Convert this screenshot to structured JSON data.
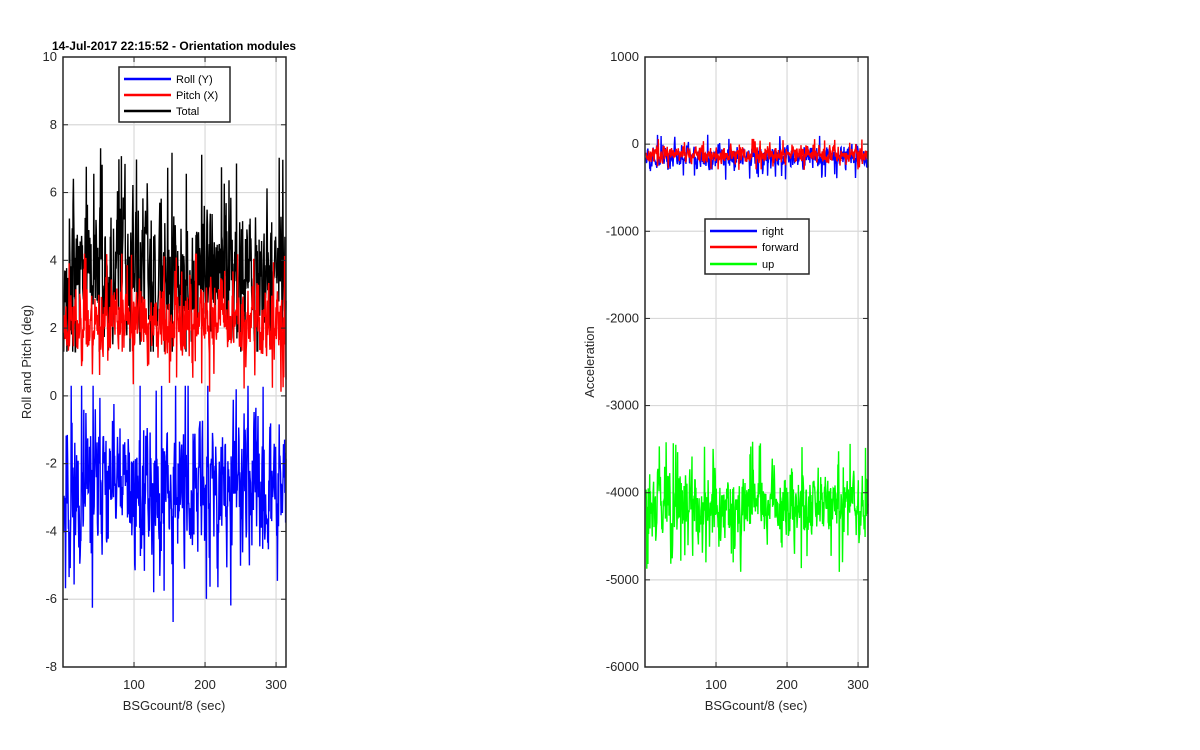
{
  "chart_data": [
    {
      "type": "line",
      "title": "14-Jul-2017 22:15:52 - Orientation modules",
      "xlabel": "BSGcount/8 (sec)",
      "ylabel": "Roll and Pitch (deg)",
      "xlim": [
        0,
        314
      ],
      "ylim": [
        -8,
        10
      ],
      "xticks": [
        100,
        200,
        300
      ],
      "xtick_labels": [
        "100",
        "200",
        "300"
      ],
      "yticks": [
        -8,
        -6,
        -4,
        -2,
        0,
        2,
        4,
        6,
        8,
        10
      ],
      "ytick_labels": [
        "-8",
        "-6",
        "-4",
        "-2",
        "0",
        "2",
        "4",
        "6",
        "8",
        "10"
      ],
      "grid": true,
      "legend_position": "top-center",
      "series": [
        {
          "name": "Roll (Y)",
          "color": "#0000ff",
          "mean": -2.8,
          "amp": 1.5,
          "min": -8,
          "max": 0.3,
          "seed": 11
        },
        {
          "name": "Pitch (X)",
          "color": "#ff0000",
          "mean": 2.2,
          "amp": 0.8,
          "min": -0.1,
          "max": 4.2,
          "seed": 23
        },
        {
          "name": "Total",
          "color": "#000000",
          "mean": 3.7,
          "amp": 1.4,
          "min": 1.3,
          "max": 8.5,
          "seed": 37
        }
      ]
    },
    {
      "type": "line",
      "title": "",
      "xlabel": "BSGcount/8 (sec)",
      "ylabel": "Acceleration",
      "xlim": [
        0,
        314
      ],
      "ylim": [
        -6000,
        1000
      ],
      "xticks": [
        100,
        200,
        300
      ],
      "xtick_labels": [
        "100",
        "200",
        "300"
      ],
      "yticks": [
        -6000,
        -5000,
        -4000,
        -3000,
        -2000,
        -1000,
        0,
        1000
      ],
      "ytick_labels": [
        "-6000",
        "-5000",
        "-4000",
        "-3000",
        "-2000",
        "-1000",
        "0",
        "1000"
      ],
      "grid": true,
      "legend_position": "upper-center",
      "series": [
        {
          "name": "right",
          "color": "#0000ff",
          "mean": -150,
          "amp": 100,
          "min": -500,
          "max": 150,
          "seed": 5
        },
        {
          "name": "forward",
          "color": "#ff0000",
          "mean": -120,
          "amp": 70,
          "min": -350,
          "max": 180,
          "seed": 17
        },
        {
          "name": "up",
          "color": "#00ff00",
          "mean": -4150,
          "amp": 300,
          "min": -5300,
          "max": -3200,
          "seed": 29
        }
      ]
    }
  ]
}
